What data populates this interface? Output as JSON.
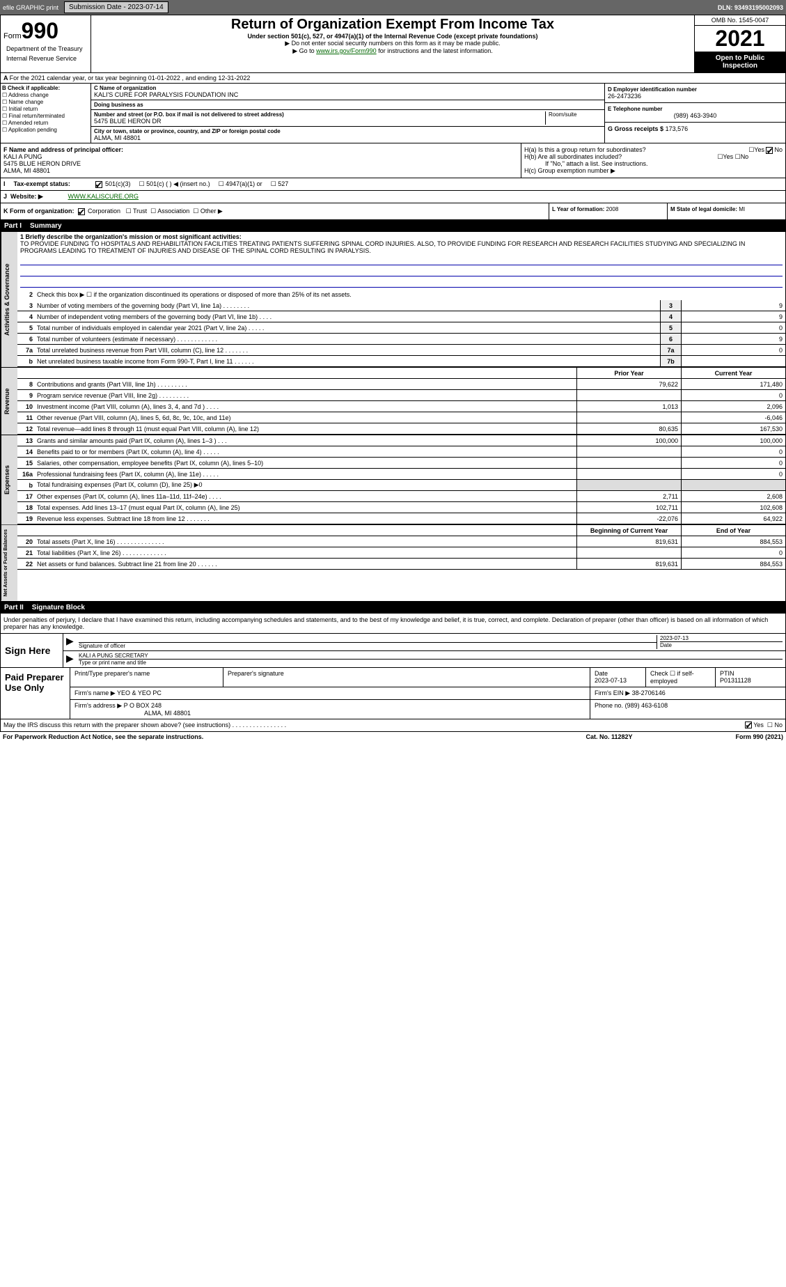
{
  "topbar": {
    "efile": "efile GRAPHIC print",
    "subdate_lbl": "Submission Date - 2023-07-14",
    "dln": "DLN: 93493195002093"
  },
  "header": {
    "form_prefix": "Form",
    "form_num": "990",
    "title": "Return of Organization Exempt From Income Tax",
    "sub": "Under section 501(c), 527, or 4947(a)(1) of the Internal Revenue Code (except private foundations)",
    "note1": "▶ Do not enter social security numbers on this form as it may be made public.",
    "note2_pre": "▶ Go to ",
    "note2_link": "www.irs.gov/Form990",
    "note2_post": " for instructions and the latest information.",
    "omb": "OMB No. 1545-0047",
    "year": "2021",
    "pub": "Open to Public Inspection",
    "dept": "Department of the Treasury",
    "irs": "Internal Revenue Service"
  },
  "period": "For the 2021 calendar year, or tax year beginning 01-01-2022   , and ending 12-31-2022",
  "B": {
    "hdr": "B Check if applicable:",
    "items": [
      "Address change",
      "Name change",
      "Initial return",
      "Final return/terminated",
      "Amended return",
      "Application pending"
    ]
  },
  "C": {
    "name_lbl": "C Name of organization",
    "name": "KALI'S CURE FOR PARALYSIS FOUNDATION INC",
    "dba_lbl": "Doing business as",
    "dba": "",
    "street_lbl": "Number and street (or P.O. box if mail is not delivered to street address)",
    "street": "5475 BLUE HERON DR",
    "room_lbl": "Room/suite",
    "city_lbl": "City or town, state or province, country, and ZIP or foreign postal code",
    "city": "ALMA, MI  48801"
  },
  "D": {
    "ein_lbl": "D Employer identification number",
    "ein": "26-2473236",
    "phone_lbl": "E Telephone number",
    "phone": "(989) 463-3940",
    "gross_lbl": "G Gross receipts $",
    "gross": "173,576"
  },
  "F": {
    "lbl": "F  Name and address of principal officer:",
    "name": "KALI A PUNG",
    "addr1": "5475 BLUE HERON DRIVE",
    "addr2": "ALMA, MI  48801"
  },
  "H": {
    "a": "H(a)  Is this a group return for subordinates?",
    "b": "H(b)  Are all subordinates included?",
    "bno": "If \"No,\" attach a list. See instructions.",
    "c": "H(c)  Group exemption number ▶",
    "yes": "Yes",
    "no": "No"
  },
  "I": {
    "lbl": "Tax-exempt status:",
    "opts": [
      "501(c)(3)",
      "501(c) (  ) ◀ (insert no.)",
      "4947(a)(1) or",
      "527"
    ]
  },
  "J": {
    "lbl": "Website: ▶",
    "val": "WWW.KALISCURE.ORG"
  },
  "K": {
    "lbl": "K Form of organization:",
    "opts": [
      "Corporation",
      "Trust",
      "Association",
      "Other ▶"
    ]
  },
  "L": {
    "lbl": "L Year of formation:",
    "val": "2008"
  },
  "M": {
    "lbl": "M State of legal domicile:",
    "val": "MI"
  },
  "part1": {
    "num": "Part I",
    "ttl": "Summary"
  },
  "mission": {
    "lbl": "1  Briefly describe the organization's mission or most significant activities:",
    "text": "TO PROVIDE FUNDING TO HOSPITALS AND REHABILITATION FACILITIES TREATING PATIENTS SUFFERING SPINAL CORD INJURIES. ALSO, TO PROVIDE FUNDING FOR RESEARCH AND RESEARCH FACILITIES STUDYING AND SPECIALIZING IN PROGRAMS LEADING TO TREATMENT OF INJURIES AND DISEASE OF THE SPINAL CORD RESULTING IN PARALYSIS."
  },
  "gov": {
    "side": "Activities & Governance",
    "l2": "Check this box ▶ ☐  if the organization discontinued its operations or disposed of more than 25% of its net assets.",
    "rows": [
      {
        "n": "3",
        "t": "Number of voting members of the governing body (Part VI, line 1a)  .   .   .   .   .   .   .   .",
        "b": "3",
        "v": "9"
      },
      {
        "n": "4",
        "t": "Number of independent voting members of the governing body (Part VI, line 1b)  .   .   .   .",
        "b": "4",
        "v": "9"
      },
      {
        "n": "5",
        "t": "Total number of individuals employed in calendar year 2021 (Part V, line 2a)  .   .   .   .   .",
        "b": "5",
        "v": "0"
      },
      {
        "n": "6",
        "t": "Total number of volunteers (estimate if necessary)   .   .   .   .   .   .   .   .   .   .   .   .",
        "b": "6",
        "v": "9"
      },
      {
        "n": "7a",
        "t": "Total unrelated business revenue from Part VIII, column (C), line 12  .   .   .   .   .   .   .",
        "b": "7a",
        "v": "0"
      },
      {
        "n": "b",
        "t": "Net unrelated business taxable income from Form 990-T, Part I, line 11  .   .   .   .   .   .",
        "b": "7b",
        "v": ""
      }
    ]
  },
  "rev": {
    "side": "Revenue",
    "py": "Prior Year",
    "cy": "Current Year",
    "rows": [
      {
        "n": "8",
        "t": "Contributions and grants (Part VIII, line 1h)   .   .   .   .   .   .   .   .   .",
        "p": "79,622",
        "c": "171,480"
      },
      {
        "n": "9",
        "t": "Program service revenue (Part VIII, line 2g)  .   .   .   .   .   .   .   .   .",
        "p": "",
        "c": "0"
      },
      {
        "n": "10",
        "t": "Investment income (Part VIII, column (A), lines 3, 4, and 7d )   .   .   .   .",
        "p": "1,013",
        "c": "2,096"
      },
      {
        "n": "11",
        "t": "Other revenue (Part VIII, column (A), lines 5, 6d, 8c, 9c, 10c, and 11e)",
        "p": "",
        "c": "-6,046"
      },
      {
        "n": "12",
        "t": "Total revenue—add lines 8 through 11 (must equal Part VIII, column (A), line 12)",
        "p": "80,635",
        "c": "167,530"
      }
    ]
  },
  "exp": {
    "side": "Expenses",
    "rows": [
      {
        "n": "13",
        "t": "Grants and similar amounts paid (Part IX, column (A), lines 1–3 )  .   .   .",
        "p": "100,000",
        "c": "100,000"
      },
      {
        "n": "14",
        "t": "Benefits paid to or for members (Part IX, column (A), line 4)  .   .   .   .   .",
        "p": "",
        "c": "0"
      },
      {
        "n": "15",
        "t": "Salaries, other compensation, employee benefits (Part IX, column (A), lines 5–10)",
        "p": "",
        "c": "0"
      },
      {
        "n": "16a",
        "t": "Professional fundraising fees (Part IX, column (A), line 11e)  .   .   .   .   .",
        "p": "",
        "c": "0"
      },
      {
        "n": "b",
        "t": "Total fundraising expenses (Part IX, column (D), line 25) ▶0",
        "p": "shade",
        "c": "shade"
      },
      {
        "n": "17",
        "t": "Other expenses (Part IX, column (A), lines 11a–11d, 11f–24e)  .   .   .   .",
        "p": "2,711",
        "c": "2,608"
      },
      {
        "n": "18",
        "t": "Total expenses. Add lines 13–17 (must equal Part IX, column (A), line 25)",
        "p": "102,711",
        "c": "102,608"
      },
      {
        "n": "19",
        "t": "Revenue less expenses. Subtract line 18 from line 12  .   .   .   .   .   .   .",
        "p": "-22,076",
        "c": "64,922"
      }
    ]
  },
  "net": {
    "side": "Net Assets or Fund Balances",
    "by": "Beginning of Current Year",
    "ey": "End of Year",
    "rows": [
      {
        "n": "20",
        "t": "Total assets (Part X, line 16)  .   .   .   .   .   .   .   .   .   .   .   .   .   .",
        "p": "819,631",
        "c": "884,553"
      },
      {
        "n": "21",
        "t": "Total liabilities (Part X, line 26)   .   .   .   .   .   .   .   .   .   .   .   .   .",
        "p": "",
        "c": "0"
      },
      {
        "n": "22",
        "t": "Net assets or fund balances. Subtract line 21 from line 20  .   .   .   .   .   .",
        "p": "819,631",
        "c": "884,553"
      }
    ]
  },
  "part2": {
    "num": "Part II",
    "ttl": "Signature Block"
  },
  "sig": {
    "intro": "Under penalties of perjury, I declare that I have examined this return, including accompanying schedules and statements, and to the best of my knowledge and belief, it is true, correct, and complete. Declaration of preparer (other than officer) is based on all information of which preparer has any knowledge.",
    "sign_lbl": "Sign Here",
    "sig_off": "Signature of officer",
    "date": "2023-07-13",
    "date_lbl": "Date",
    "name": "KALI A PUNG SECRETARY",
    "name_lbl": "Type or print name and title"
  },
  "prep": {
    "lbl": "Paid Preparer Use Only",
    "h1": "Print/Type preparer's name",
    "h2": "Preparer's signature",
    "h3": "Date",
    "h3v": "2023-07-13",
    "h4": "Check ☐  if self-employed",
    "h5": "PTIN",
    "h5v": "P01311128",
    "firm_lbl": "Firm's name   ▶",
    "firm": "YEO & YEO PC",
    "ein_lbl": "Firm's EIN ▶",
    "ein": "38-2706146",
    "addr_lbl": "Firm's address ▶",
    "addr1": "P O BOX 248",
    "addr2": "ALMA, MI  48801",
    "ph_lbl": "Phone no.",
    "ph": "(989) 463-6108"
  },
  "discuss": "May the IRS discuss this return with the preparer shown above? (see instructions)   .   .   .   .   .   .   .   .   .   .   .   .   .   .   .   .",
  "footer": {
    "pra": "For Paperwork Reduction Act Notice, see the separate instructions.",
    "cat": "Cat. No. 11282Y",
    "form": "Form 990 (2021)"
  }
}
